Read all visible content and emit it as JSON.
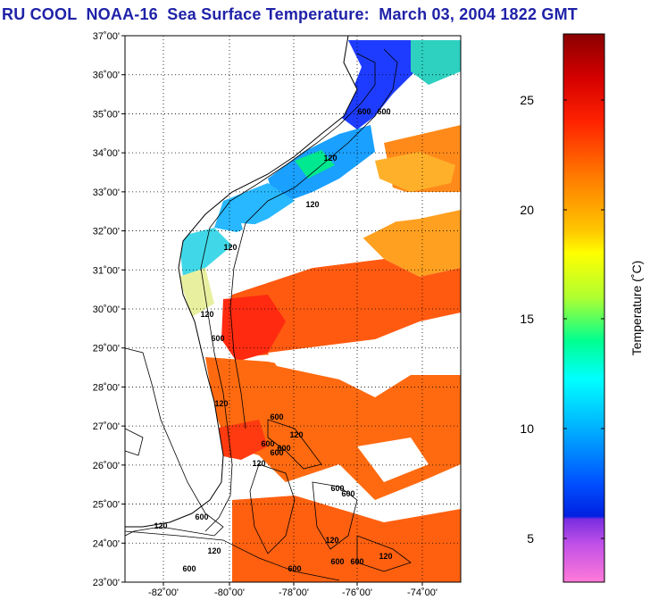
{
  "title": "RU COOL  NOAA-16  Sea Surface Temperature:  March 03, 2004 1822 GMT",
  "map": {
    "lat_labels": [
      "37˚00'",
      "36˚00'",
      "35˚00'",
      "34˚00'",
      "33˚00'",
      "32˚00'",
      "31˚00'",
      "30˚00'",
      "29˚00'",
      "28˚00'",
      "27˚00'",
      "26˚00'",
      "25˚00'",
      "24˚00'",
      "23˚00'"
    ],
    "lon_labels": [
      "-82˚00'",
      "-80˚00'",
      "-78˚00'",
      "-76˚00'",
      "-74˚00'"
    ],
    "contour_labels": [
      "120",
      "120",
      "120",
      "600",
      "600",
      "120",
      "600",
      "120",
      "600",
      "600",
      "600",
      "120",
      "600",
      "600",
      "120",
      "600",
      "120",
      "600",
      "120",
      "600",
      "600",
      "600",
      "120",
      "120",
      "600"
    ]
  },
  "colorbar": {
    "label": "Temperature (˚C)",
    "ticks": [
      "25",
      "20",
      "15",
      "10",
      "5"
    ],
    "colors": {
      "top": "#8b0000",
      "red": "#ff1a00",
      "orange": "#ff8c00",
      "yellow": "#ffff00",
      "green": "#00ff80",
      "cyan": "#00ffff",
      "blue": "#0040ff",
      "purple": "#8a2be2",
      "pink": "#ff66cc"
    }
  }
}
